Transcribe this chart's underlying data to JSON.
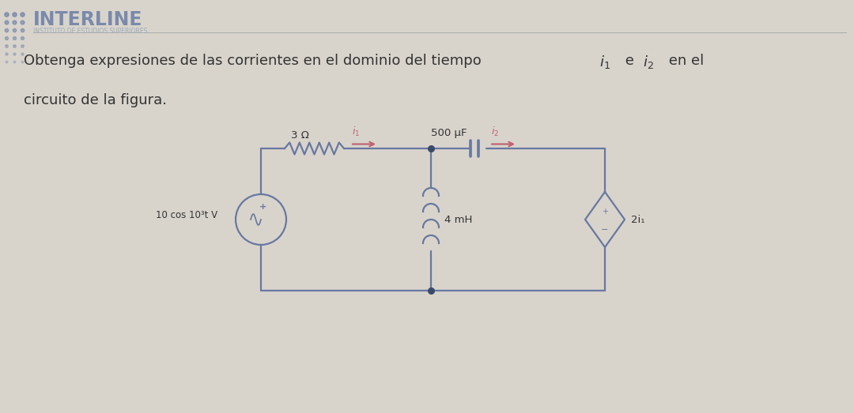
{
  "bg_color": "#d8d4cc",
  "title_text": "INTERLINE",
  "subtitle_text": "INSTITUTO DE ESTUDIOS SUPERIORES",
  "problem_line1": "Obtenga expresiones de las corrientes en el dominio del tiempo $i_1$ e $i_2$ en el",
  "problem_line2": "circuito de la figura.",
  "circuit": {
    "vs_label": "10 cos 10³t V",
    "r_label": "3 Ω",
    "l_label": "4 mH",
    "c_label": "500 μF",
    "dep_label": "2i₁",
    "i1_label": "$i_1$",
    "i2_label": "$i_2$",
    "circuit_color": "#6878a0",
    "label_color": "#c06070",
    "arrow_color": "#c06070"
  }
}
